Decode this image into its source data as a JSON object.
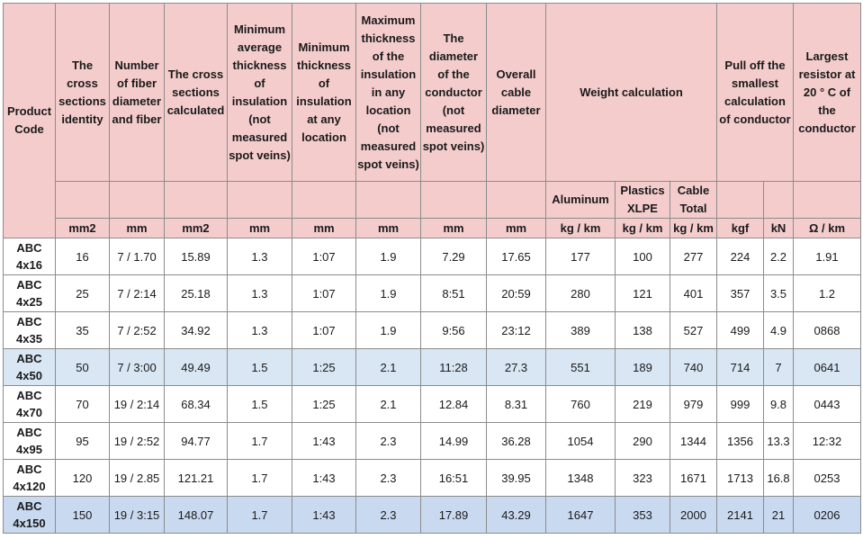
{
  "headers": {
    "product_code": "Product Code",
    "cross_section_identity": "The cross sections identity",
    "fiber": "Number of fiber diameter and fiber",
    "cross_calculated": "The cross sections calculated",
    "min_avg_insulation": "Minimum average thickness of insulation (not measured spot veins)",
    "min_insulation_any": "Minimum thickness of insulation at any location",
    "max_insulation_any": "Maximum thickness of the insulation in any location (not measured spot veins)",
    "conductor_diameter": "The diameter of the conductor (not measured spot veins)",
    "overall_diameter": "Overall cable diameter",
    "weight_calc": "Weight calculation",
    "pull_off": "Pull off the smallest calculation of conductor",
    "resistor": "Largest resistor at 20 ° C of the conductor",
    "aluminum": "Aluminum",
    "plastics": "Plastics XLPE",
    "cable_total": "Cable Total"
  },
  "units": [
    "mm2",
    "mm",
    "mm2",
    "mm",
    "mm",
    "mm",
    "mm",
    "mm",
    "kg / km",
    "kg / km",
    "kg / km",
    "kgf",
    "kN",
    "Ω / km"
  ],
  "rows": [
    {
      "code1": "ABC",
      "code2": "4x16",
      "cells": [
        "16",
        "7 / 1.70",
        "15.89",
        "1.3",
        "1:07",
        "1.9",
        "7.29",
        "17.65",
        "177",
        "100",
        "277",
        "224",
        "2.2",
        "1.91"
      ]
    },
    {
      "code1": "ABC",
      "code2": "4x25",
      "cells": [
        "25",
        "7 / 2:14",
        "25.18",
        "1.3",
        "1:07",
        "1.9",
        "8:51",
        "20:59",
        "280",
        "121",
        "401",
        "357",
        "3.5",
        "1.2"
      ]
    },
    {
      "code1": "ABC",
      "code2": "4x35",
      "cells": [
        "35",
        "7 / 2:52",
        "34.92",
        "1.3",
        "1:07",
        "1.9",
        "9:56",
        "23:12",
        "389",
        "138",
        "527",
        "499",
        "4.9",
        "0868"
      ]
    },
    {
      "code1": "ABC",
      "code2": "4x50",
      "cells": [
        "50",
        "7 / 3:00",
        "49.49",
        "1.5",
        "1:25",
        "2.1",
        "11:28",
        "27.3",
        "551",
        "189",
        "740",
        "714",
        "7",
        "0641"
      ]
    },
    {
      "code1": "ABC",
      "code2": "4x70",
      "cells": [
        "70",
        "19 / 2:14",
        "68.34",
        "1.5",
        "1:25",
        "2.1",
        "12.84",
        "8.31",
        "760",
        "219",
        "979",
        "999",
        "9.8",
        "0443"
      ]
    },
    {
      "code1": "ABC",
      "code2": "4x95",
      "cells": [
        "95",
        "19 / 2:52",
        "94.77",
        "1.7",
        "1:43",
        "2.3",
        "14.99",
        "36.28",
        "1054",
        "290",
        "1344",
        "1356",
        "13.3",
        "12:32"
      ]
    },
    {
      "code1": "ABC",
      "code2": "4x120",
      "cells": [
        "120",
        "19 / 2.85",
        "121.21",
        "1.7",
        "1:43",
        "2.3",
        "16:51",
        "39.95",
        "1348",
        "323",
        "1671",
        "1713",
        "16.8",
        "0253"
      ]
    },
    {
      "code1": "ABC",
      "code2": "4x150",
      "cells": [
        "150",
        "19 / 3:15",
        "148.07",
        "1.7",
        "1:43",
        "2.3",
        "17.89",
        "43.29",
        "1647",
        "353",
        "2000",
        "2141",
        "21",
        "0206"
      ]
    }
  ],
  "row_styles": [
    "plain",
    "plain",
    "plain",
    "hl-light",
    "plain",
    "plain",
    "plain",
    "hl-strong"
  ],
  "colors": {
    "header": "#f4cccc",
    "highlight_light": "#d9e6f4",
    "highlight_strong": "#c9d9ef",
    "border": "#8c8c8c"
  }
}
